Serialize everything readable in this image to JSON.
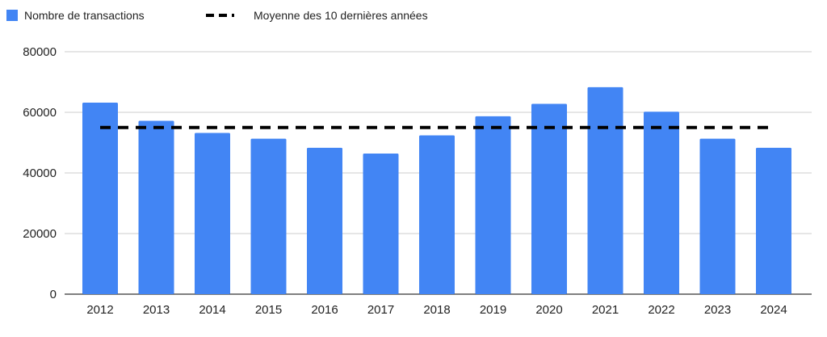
{
  "chart_data": {
    "type": "bar",
    "title": "",
    "xlabel": "",
    "ylabel": "",
    "categories": [
      "2012",
      "2013",
      "2014",
      "2015",
      "2016",
      "2017",
      "2018",
      "2019",
      "2020",
      "2021",
      "2022",
      "2023",
      "2024"
    ],
    "series": [
      {
        "name": "Nombre de transactions",
        "type": "bar",
        "color": "#4285F4",
        "values": [
          63200,
          57200,
          53200,
          51300,
          48300,
          46400,
          52400,
          58700,
          62800,
          68300,
          60200,
          51300,
          48300
        ]
      },
      {
        "name": "Moyenne des 10 dernières années",
        "type": "line",
        "style": "dashed",
        "color": "#000000",
        "values": [
          55000,
          55000,
          55000,
          55000,
          55000,
          55000,
          55000,
          55000,
          55000,
          55000,
          55000,
          55000,
          55000
        ]
      }
    ],
    "ylim": [
      0,
      80000
    ],
    "yticks": [
      "0",
      "20000",
      "40000",
      "60000",
      "80000"
    ],
    "grid": true,
    "legend_position": "top-left"
  }
}
